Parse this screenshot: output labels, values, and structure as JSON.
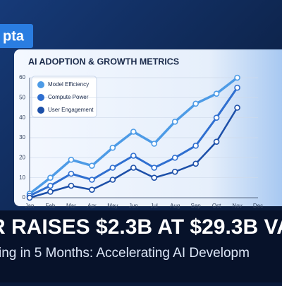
{
  "brand": "pta",
  "headline": "R RAISES $2.3B AT $29.3B VAL",
  "subheadline": "ing in 5 Months: Accelerating AI Developm",
  "chart_data": {
    "type": "line",
    "title": "AI ADOPTION & GROWTH METRICS",
    "categories": [
      "Jan",
      "Feb",
      "Mar",
      "Apr",
      "May",
      "Jun",
      "Jul",
      "Aug",
      "Sep",
      "Oct",
      "Nov",
      "Dec"
    ],
    "series": [
      {
        "name": "Model Efficiency",
        "color": "#4d9be6",
        "values": [
          2,
          10,
          19,
          16,
          25,
          33,
          27,
          38,
          47,
          52,
          60,
          null
        ]
      },
      {
        "name": "Compute Power",
        "color": "#2f6fd0",
        "values": [
          1,
          6,
          12,
          9,
          15,
          21,
          15,
          20,
          26,
          40,
          55,
          null
        ]
      },
      {
        "name": "User Engagement",
        "color": "#1c4fa8",
        "values": [
          0,
          3,
          6,
          4,
          9,
          15,
          10,
          13,
          17,
          28,
          45,
          null
        ]
      }
    ],
    "ylim": [
      0,
      60
    ],
    "yticks": [
      0,
      10,
      20,
      30,
      40,
      50,
      60
    ],
    "grid": true
  }
}
